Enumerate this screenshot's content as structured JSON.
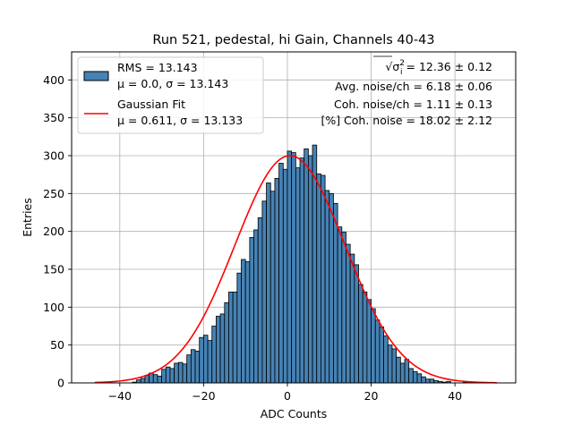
{
  "chart_data": {
    "type": "bar",
    "title": "Run 521, pedestal, hi Gain, Channels 40-43",
    "xlabel": "ADC Counts",
    "ylabel": "Entries",
    "xlim": [
      -51.5,
      54.5
    ],
    "ylim": [
      0,
      437
    ],
    "x_ticks": [
      -40,
      -20,
      0,
      20,
      40
    ],
    "y_ticks": [
      0,
      50,
      100,
      150,
      200,
      250,
      300,
      350,
      400
    ],
    "grid": true,
    "bin_width": 1,
    "bin_start": -46,
    "series": [
      {
        "name": "RMS = 13.143",
        "label_line2": "μ = 0.0, σ = 13.143",
        "type": "histogram",
        "color": "#4682b4",
        "edge_color": "#000000",
        "values": [
          0,
          0,
          0,
          0,
          0,
          0,
          0,
          0,
          0,
          1,
          4,
          6,
          10,
          13,
          11,
          9,
          18,
          21,
          19,
          26,
          27,
          25,
          37,
          44,
          42,
          60,
          63,
          56,
          75,
          88,
          91,
          106,
          120,
          120,
          145,
          163,
          160,
          192,
          202,
          218,
          240,
          264,
          253,
          270,
          290,
          282,
          306,
          304,
          284,
          297,
          309,
          300,
          314,
          276,
          274,
          254,
          250,
          237,
          206,
          199,
          183,
          170,
          156,
          130,
          120,
          110,
          98,
          83,
          74,
          62,
          50,
          45,
          34,
          26,
          31,
          19,
          15,
          12,
          8,
          5,
          5,
          3,
          2,
          1,
          2,
          0,
          0,
          0,
          1,
          0,
          0,
          0,
          0,
          0,
          0,
          0
        ]
      },
      {
        "name": "Gaussian Fit",
        "label_line2": "μ = 0.611, σ = 13.133",
        "type": "line",
        "color": "#ff0000",
        "mu": 0.611,
        "sigma": 13.133,
        "amplitude": 300,
        "x_range": [
          -46,
          50
        ]
      }
    ],
    "legend_position": "top-left",
    "annotations": [
      {
        "prefix": "",
        "sqrt_sym": "√",
        "sigma_sym": "σ",
        "sup": "2",
        "sub": "i",
        "text": " = 12.36 ± 0.12"
      },
      {
        "text": "Avg. noise/ch = 6.18 ± 0.06"
      },
      {
        "text": "Coh. noise/ch = 1.11 ± 0.13"
      },
      {
        "text": "[%] Coh. noise = 18.02 ± 2.12"
      }
    ]
  }
}
